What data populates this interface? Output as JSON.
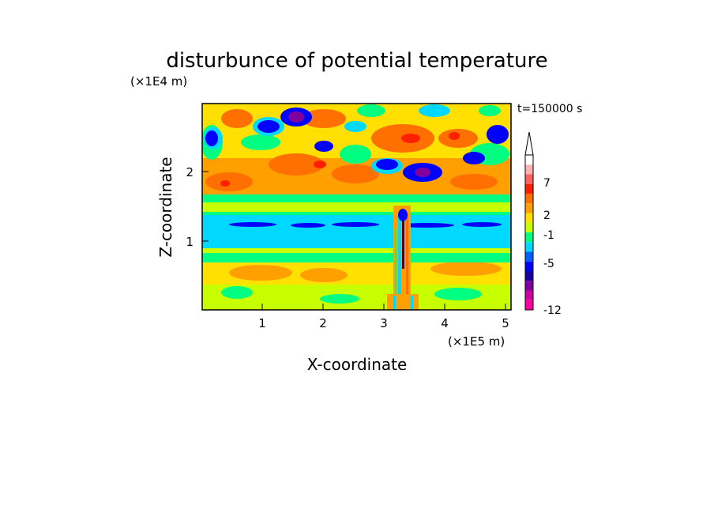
{
  "chart_data": {
    "type": "heatmap",
    "title": "disturbunce of potential temperature",
    "xlabel": "X-coordinate",
    "ylabel": "Z-coordinate",
    "x_unit": "(×1E5 m)",
    "y_unit": "(×1E4 m)",
    "time_label": "t=150000 s",
    "xlim": [
      0,
      5.12
    ],
    "ylim": [
      0,
      2.95
    ],
    "xticks": [
      "1",
      "2",
      "3",
      "4",
      "5"
    ],
    "yticks": [
      "1",
      "2"
    ],
    "grid": false,
    "colorbar": {
      "placement": "right",
      "labels": [
        "7",
        "2",
        "-1",
        "-5",
        "-12"
      ],
      "colors": [
        "#ff00a0",
        "#d000a0",
        "#8000a0",
        "#1a00a0",
        "#0000ff",
        "#0060ff",
        "#00d8ff",
        "#00ff80",
        "#c8ff00",
        "#ffe000",
        "#ffa000",
        "#ff7000",
        "#ff2000",
        "#ff6060",
        "#ffb0b0",
        "#ffffff"
      ]
    },
    "bands": [
      {
        "z_range": [
          0.0,
          0.8
        ],
        "dominant": "yellow/orange (positive)"
      },
      {
        "z_range": [
          0.8,
          1.0
        ],
        "dominant": "green/yellow"
      },
      {
        "z_range": [
          1.0,
          1.5
        ],
        "dominant": "cyan with blue streak (negative)"
      },
      {
        "z_range": [
          1.5,
          1.8
        ],
        "dominant": "green"
      },
      {
        "z_range": [
          1.8,
          2.95
        ],
        "dominant": "alternating red and blue cells (wave pattern)"
      }
    ],
    "disturbance_column_x": 3.3
  }
}
